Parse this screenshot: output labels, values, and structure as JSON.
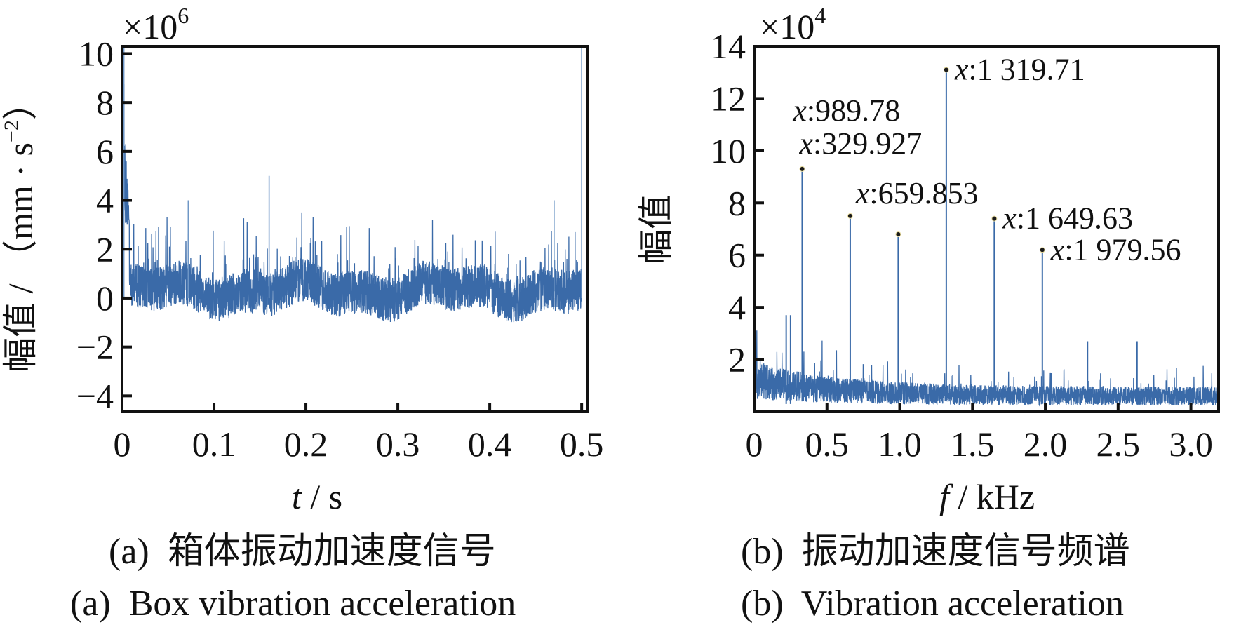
{
  "chart_data": [
    {
      "id": "a",
      "type": "line",
      "title_zh": "(a)  箱体振动加速度信号",
      "title_en": "(a)  Box vibration acceleration",
      "xlabel_var": "t",
      "xlabel_unit": " / s",
      "ylabel": "幅值 / （mm · s",
      "ylabel_sup": "−2",
      "ylabel_close": "）",
      "y_multiplier": "×10",
      "y_multiplier_exp": "6",
      "xlim": [
        0,
        0.506
      ],
      "ylim": [
        -4.65,
        10.3
      ],
      "xticks": [
        0,
        0.1,
        0.2,
        0.3,
        0.4,
        0.5
      ],
      "xtick_labels": [
        "0",
        "0.1",
        "0.2",
        "0.3",
        "0.4",
        "0.5"
      ],
      "yticks": [
        -4,
        -2,
        0,
        2,
        4,
        6,
        8,
        10
      ],
      "ytick_labels": [
        "−4",
        "−2",
        "0",
        "2",
        "4",
        "6",
        "8",
        "10"
      ],
      "grid": false,
      "color": "#3a6aa8",
      "series_description": "time-domain vibration acceleration, noise band approx −1 to 2 (×10^6), initial transient up to ~10 at t≈0, isolated spikes up to ~5",
      "notable_points": [
        {
          "x": 0.002,
          "y": 10.3
        },
        {
          "x": 0.16,
          "y": 5.0
        },
        {
          "x": 0.072,
          "y": 4.0
        },
        {
          "x": 0.47,
          "y": 4.0
        },
        {
          "x": 0.5,
          "y": 10.3
        }
      ]
    },
    {
      "id": "b",
      "type": "line",
      "title_zh": "(b)  振动加速度信号频谱",
      "title_en": "(b)  Vibration acceleration",
      "xlabel_var": "f",
      "xlabel_unit": " / kHz",
      "ylabel": "幅值",
      "y_multiplier": "×10",
      "y_multiplier_exp": "4",
      "xlim": [
        0,
        3.19
      ],
      "ylim": [
        0,
        14
      ],
      "xticks": [
        0,
        0.5,
        1.0,
        1.5,
        2.0,
        2.5,
        3.0
      ],
      "xtick_labels": [
        "0",
        "0.5",
        "1.0",
        "1.5",
        "2.0",
        "2.5",
        "3.0"
      ],
      "yticks": [
        2,
        4,
        6,
        8,
        10,
        12,
        14
      ],
      "ytick_labels": [
        "2",
        "4",
        "6",
        "8",
        "10",
        "12",
        "14"
      ],
      "grid": false,
      "color": "#3a6aa8",
      "peaks": [
        {
          "x_hz": 329.927,
          "y": 9.3,
          "label": "x:329.927",
          "label_x": "x",
          "label_val": ":329.927"
        },
        {
          "x_hz": 659.853,
          "y": 7.5,
          "label": "x:659.853",
          "label_x": "x",
          "label_val": ":659.853"
        },
        {
          "x_hz": 989.78,
          "y": 6.8,
          "label": "x:989.78",
          "label_x": "x",
          "label_val": ":989.78"
        },
        {
          "x_hz": 1319.71,
          "y": 13.1,
          "label": "x:1 319.71",
          "label_x": "x",
          "label_val": ":1 319.71"
        },
        {
          "x_hz": 1649.63,
          "y": 7.4,
          "label": "x:1 649.63",
          "label_x": "x",
          "label_val": ":1 649.63"
        },
        {
          "x_hz": 1979.56,
          "y": 6.2,
          "label": "x:1 979.56",
          "label_x": "x",
          "label_val": ":1 979.56"
        }
      ],
      "minor_peaks": [
        {
          "x_khz": 2.29,
          "y": 2.7
        },
        {
          "x_khz": 2.63,
          "y": 2.7
        },
        {
          "x_khz": 0.22,
          "y": 3.7
        },
        {
          "x_khz": 0.25,
          "y": 3.7
        }
      ],
      "noise_floor": {
        "low_freq_level": 1.2,
        "high_freq_level": 0.6
      }
    }
  ]
}
